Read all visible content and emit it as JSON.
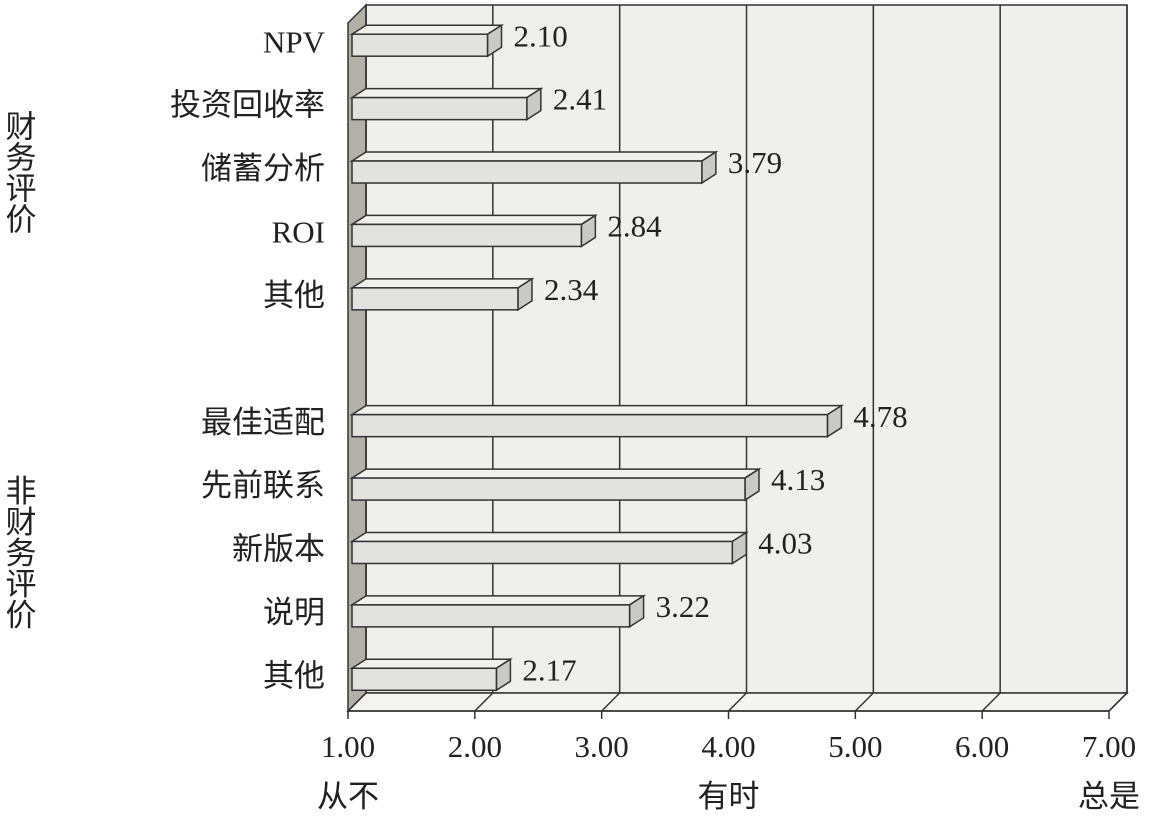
{
  "chart_data": {
    "type": "bar3d",
    "categories": [
      "NPV",
      "投资回收率",
      "储蓄分析",
      "ROI",
      "其他",
      null,
      "最佳适配",
      "先前联系",
      "新版本",
      "说明",
      "其他"
    ],
    "values": [
      2.1,
      2.41,
      3.79,
      2.84,
      2.34,
      null,
      4.78,
      4.13,
      4.03,
      3.22,
      2.17
    ],
    "value_labels": [
      "2.10",
      "2.41",
      "3.79",
      "2.84",
      "2.34",
      null,
      "4.78",
      "4.13",
      "4.03",
      "3.22",
      "2.17"
    ],
    "group_labels": [
      {
        "label": "财务评价",
        "categories": [
          0,
          4
        ]
      },
      {
        "label": "非财务评价",
        "categories": [
          6,
          10
        ]
      }
    ],
    "xlim": [
      1,
      7
    ],
    "xticks": [
      {
        "value": 1,
        "label": "1.00"
      },
      {
        "value": 2,
        "label": "2.00"
      },
      {
        "value": 3,
        "label": "3.00"
      },
      {
        "value": 4,
        "label": "4.00"
      },
      {
        "value": 5,
        "label": "5.00"
      },
      {
        "value": 6,
        "label": "6.00"
      },
      {
        "value": 7,
        "label": "7.00"
      }
    ],
    "xtick_texts": [
      {
        "value": 1,
        "label": "从不"
      },
      {
        "value": 4,
        "label": "有时"
      },
      {
        "value": 7,
        "label": "总是"
      }
    ],
    "color": "#e2e2e0",
    "grid": true
  }
}
